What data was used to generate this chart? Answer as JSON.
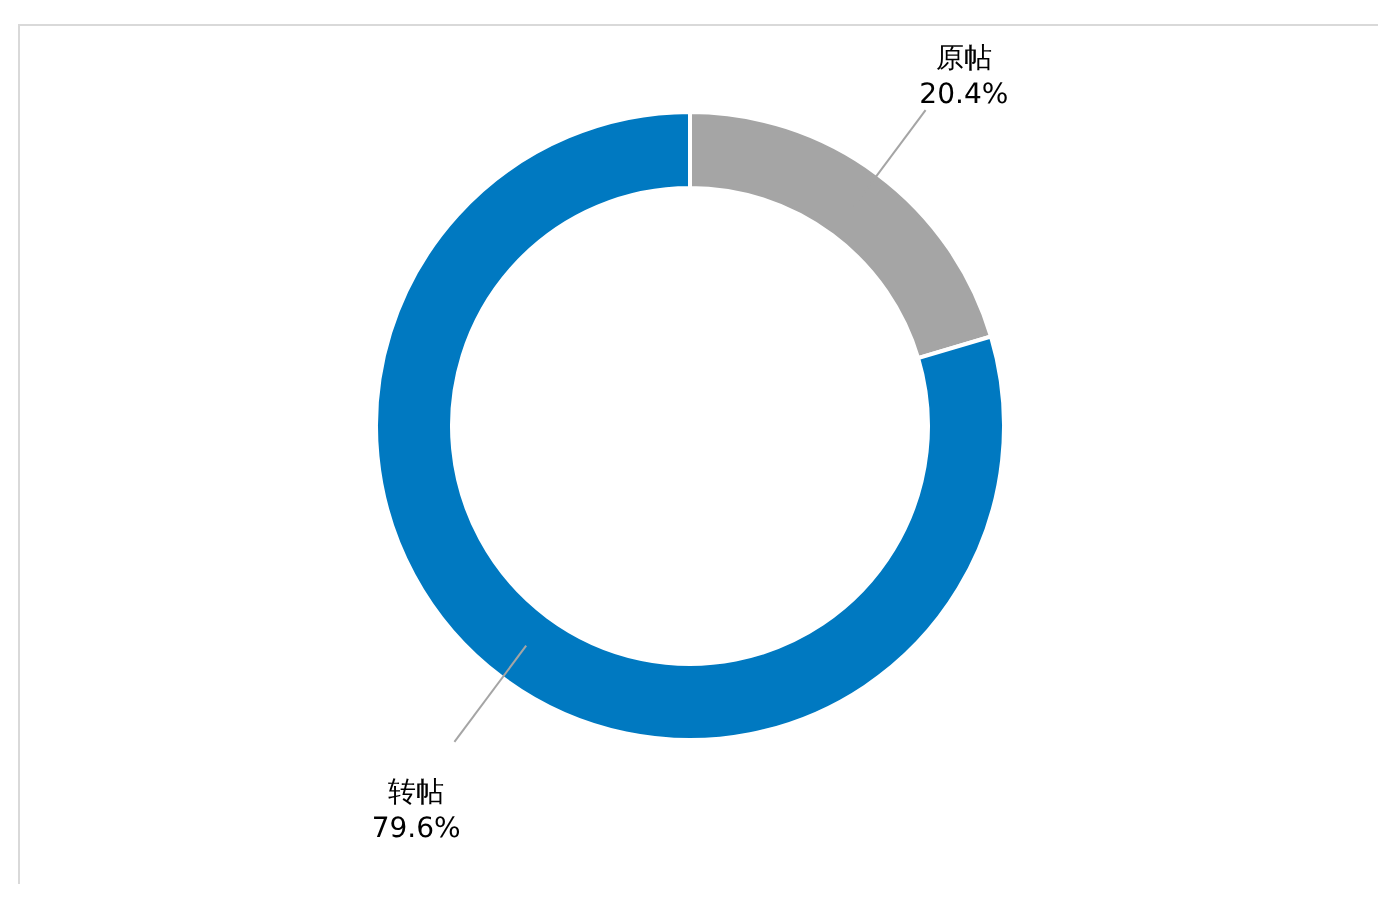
{
  "chart_data": {
    "type": "donut",
    "categories": [
      "原帖",
      "转帖"
    ],
    "values": [
      20.4,
      79.6
    ],
    "colors": [
      "#a5a5a5",
      "#0079c1"
    ],
    "value_labels": [
      "20.4%",
      "79.6%"
    ]
  }
}
